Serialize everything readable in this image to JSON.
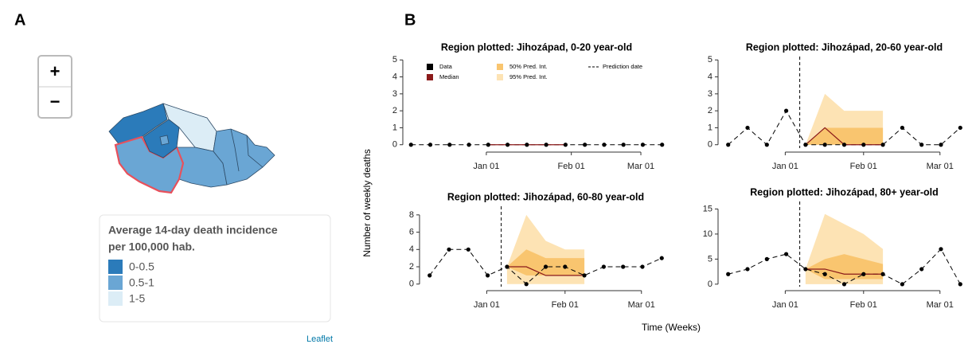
{
  "panel_labels": [
    "A",
    "B"
  ],
  "map": {
    "zoom_in": "+",
    "zoom_out": "−",
    "legend_title": [
      "Average 14-day death incidence",
      "per 100,000 hab."
    ],
    "legend": [
      {
        "label": "0-0.5",
        "color": "#2b7bba"
      },
      {
        "label": "0.5-1",
        "color": "#6aa6d4"
      },
      {
        "label": "1-5",
        "color": "#dcedf6"
      }
    ],
    "highlight_color": "#e8505b",
    "attribution": "Leaflet"
  },
  "y_label": "Number of weekly deaths",
  "x_label": "Time (Weeks)",
  "chart_data": [
    {
      "type": "line",
      "title": "Region plotted: Jihozápad, 0-20 year-old",
      "xlim": [
        -0.3,
        13.3
      ],
      "xticks": [
        {
          "value": 3.9,
          "label": "Jan 01"
        },
        {
          "value": 8.3,
          "label": "Feb 01"
        },
        {
          "value": 11.9,
          "label": "Mar 01"
        }
      ],
      "ylim": [
        -0.2,
        5.2
      ],
      "yticks": [
        0,
        1,
        2,
        3,
        4,
        5
      ],
      "legend": [
        {
          "name": "Data",
          "color": "#000000"
        },
        {
          "name": "Median",
          "color": "#8b1a1a"
        },
        {
          "name": "50% Pred. Int.",
          "color": "#f9c56f"
        },
        {
          "name": "95% Pred. Int.",
          "color": "#fde3b4"
        },
        {
          "name": "Prediction date",
          "color": "#000000"
        }
      ],
      "data": {
        "x": [
          0,
          1,
          2,
          3,
          4,
          5,
          6,
          7,
          8,
          9,
          10,
          11,
          12,
          13
        ],
        "values": [
          0,
          0,
          0,
          0,
          0,
          0,
          0,
          0,
          0,
          0,
          0,
          0,
          0,
          0
        ]
      },
      "median": {
        "x": [
          4,
          5,
          6,
          7,
          8
        ],
        "values": [
          0,
          0,
          0,
          0,
          0
        ]
      }
    },
    {
      "type": "line",
      "title": "Region plotted: Jihozápad, 20-60 year-old",
      "xlim": [
        -0.4,
        12.4
      ],
      "xticks": [
        {
          "value": 2.95,
          "label": "Jan 01"
        },
        {
          "value": 7,
          "label": "Feb 01"
        },
        {
          "value": 10.95,
          "label": "Mar 01"
        }
      ],
      "ylim": [
        -0.2,
        5.2
      ],
      "yticks": [
        0,
        1,
        2,
        3,
        4,
        5
      ],
      "prediction_date": 3.7,
      "pi95": {
        "x": [
          4,
          5,
          6,
          7,
          8
        ],
        "lower": [
          0,
          0,
          0,
          0,
          0
        ],
        "upper": [
          0,
          3,
          2,
          2,
          2
        ]
      },
      "pi50": {
        "x": [
          4,
          5,
          6,
          7,
          8
        ],
        "lower": [
          0,
          0,
          0,
          0,
          0
        ],
        "upper": [
          0,
          1,
          1,
          1,
          1
        ]
      },
      "data": {
        "x": [
          0,
          1,
          2,
          3,
          4,
          5,
          6,
          7,
          8,
          9,
          10,
          11,
          12
        ],
        "values": [
          0,
          1,
          0,
          2,
          0,
          0,
          0,
          0,
          0,
          1,
          0,
          0,
          1
        ]
      },
      "median": {
        "x": [
          4,
          5,
          6,
          7,
          8
        ],
        "values": [
          0,
          1,
          0,
          0,
          0
        ]
      }
    },
    {
      "type": "line",
      "title": "Region plotted: Jihozápad, 60-80 year-old",
      "xlim": [
        -0.4,
        12.4
      ],
      "xticks": [
        {
          "value": 2.95,
          "label": "Jan 01"
        },
        {
          "value": 7,
          "label": "Feb 01"
        },
        {
          "value": 10.95,
          "label": "Mar 01"
        }
      ],
      "ylim": [
        -0.3,
        9
      ],
      "yticks": [
        0,
        2,
        4,
        6,
        8
      ],
      "prediction_date": 3.7,
      "pi95": {
        "x": [
          4,
          5,
          6,
          7,
          8
        ],
        "lower": [
          0,
          0,
          0,
          0,
          0
        ],
        "upper": [
          2,
          8,
          5,
          4,
          4
        ]
      },
      "pi50": {
        "x": [
          4,
          5,
          6,
          7,
          8
        ],
        "lower": [
          2,
          1,
          1,
          1,
          1
        ],
        "upper": [
          2,
          4,
          3,
          3,
          3
        ]
      },
      "data": {
        "x": [
          0,
          1,
          2,
          3,
          4,
          5,
          6,
          7,
          8,
          9,
          10,
          11,
          12
        ],
        "values": [
          1,
          4,
          4,
          1,
          2,
          0,
          2,
          2,
          1,
          2,
          2,
          2,
          3
        ]
      },
      "median": {
        "x": [
          4,
          5,
          6,
          7,
          8
        ],
        "values": [
          2,
          2,
          1,
          1,
          1
        ]
      }
    },
    {
      "type": "line",
      "title": "Region plotted: Jihozápad, 80+ year-old",
      "xlim": [
        -0.4,
        12.4
      ],
      "xticks": [
        {
          "value": 2.95,
          "label": "Jan 01"
        },
        {
          "value": 7,
          "label": "Feb 01"
        },
        {
          "value": 10.95,
          "label": "Mar 01"
        }
      ],
      "ylim": [
        -0.5,
        16.5
      ],
      "yticks": [
        0,
        5,
        10,
        15
      ],
      "prediction_date": 3.7,
      "pi95": {
        "x": [
          4,
          5,
          6,
          7,
          8
        ],
        "lower": [
          0,
          0,
          0,
          0,
          0
        ],
        "upper": [
          3,
          14,
          12,
          10,
          7
        ]
      },
      "pi50": {
        "x": [
          4,
          5,
          6,
          7,
          8
        ],
        "lower": [
          3,
          1,
          1,
          1,
          1
        ],
        "upper": [
          3,
          5,
          6,
          5,
          4
        ]
      },
      "data": {
        "x": [
          0,
          1,
          2,
          3,
          4,
          5,
          6,
          7,
          8,
          9,
          10,
          11,
          12
        ],
        "values": [
          2,
          3,
          5,
          6,
          3,
          2,
          0,
          2,
          2,
          0,
          3,
          7,
          0
        ]
      },
      "median": {
        "x": [
          4,
          5,
          6,
          7,
          8
        ],
        "values": [
          3,
          3,
          2,
          2,
          2
        ]
      }
    }
  ]
}
